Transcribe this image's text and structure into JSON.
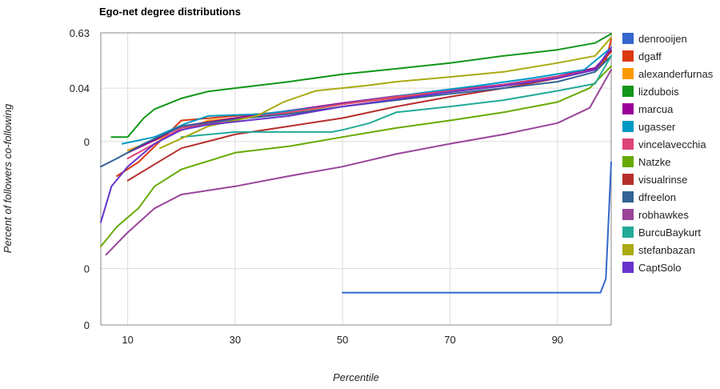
{
  "chart_data": {
    "type": "line",
    "title": "Ego-net degree distributions",
    "xlabel": "Percentile",
    "ylabel": "Percent of followers co-following",
    "xlim": [
      5,
      100
    ],
    "yscale": "log",
    "ylim": [
      3e-07,
      0.63
    ],
    "x_ticks": [
      {
        "label": "10",
        "value": 10
      },
      {
        "label": "30",
        "value": 30
      },
      {
        "label": "50",
        "value": 50
      },
      {
        "label": "70",
        "value": 70
      },
      {
        "label": "90",
        "value": 90
      }
    ],
    "y_ticks": [
      {
        "label": "0",
        "value": 3e-07
      },
      {
        "label": "0",
        "value": 5e-06
      },
      {
        "label": "0",
        "value": 0.0028
      },
      {
        "label": "0.04",
        "value": 0.04
      },
      {
        "label": "0.63",
        "value": 0.63
      }
    ],
    "grid": true,
    "legend_position": "right",
    "series": [
      {
        "name": "denrooijen",
        "color": "#3366cc",
        "x": [
          50,
          98,
          99,
          100
        ],
        "y": [
          1.5e-06,
          1.5e-06,
          3e-06,
          0.001
        ]
      },
      {
        "name": "dgaff",
        "color": "#dc3912",
        "x": [
          8,
          12,
          20,
          30,
          40,
          50,
          60,
          70,
          80,
          90,
          97,
          99,
          100
        ],
        "y": [
          0.0005,
          0.001,
          0.008,
          0.01,
          0.0125,
          0.018,
          0.025,
          0.033,
          0.045,
          0.07,
          0.1,
          0.16,
          0.45
        ]
      },
      {
        "name": "alexanderfurnas",
        "color": "#ff9900",
        "x": [
          10,
          18,
          25,
          35,
          41,
          50,
          60,
          70,
          80,
          90,
          97,
          100
        ],
        "y": [
          0.0018,
          0.004,
          0.008,
          0.01,
          0.012,
          0.018,
          0.026,
          0.035,
          0.047,
          0.07,
          0.1,
          0.25
        ]
      },
      {
        "name": "lizdubois",
        "color": "#109618",
        "x": [
          7,
          10,
          13,
          15,
          20,
          25,
          30,
          40,
          50,
          60,
          70,
          80,
          90,
          97,
          100
        ],
        "y": [
          0.0035,
          0.0035,
          0.009,
          0.014,
          0.024,
          0.034,
          0.04,
          0.055,
          0.08,
          0.105,
          0.14,
          0.2,
          0.27,
          0.38,
          0.6
        ]
      },
      {
        "name": "marcua",
        "color": "#990099",
        "x": [
          10,
          15,
          20,
          30,
          40,
          50,
          60,
          70,
          80,
          90,
          97,
          100
        ],
        "y": [
          0.0016,
          0.003,
          0.006,
          0.009,
          0.013,
          0.019,
          0.027,
          0.036,
          0.048,
          0.072,
          0.11,
          0.26
        ]
      },
      {
        "name": "ugasser",
        "color": "#0099c6",
        "x": [
          9,
          15,
          21,
          25,
          35,
          45,
          55,
          65,
          75,
          85,
          95,
          100
        ],
        "y": [
          0.0025,
          0.0035,
          0.007,
          0.01,
          0.011,
          0.015,
          0.022,
          0.032,
          0.045,
          0.065,
          0.1,
          0.3
        ]
      },
      {
        "name": "vincelavecchia",
        "color": "#dd4477",
        "x": [
          10,
          15,
          20,
          30,
          40,
          50,
          60,
          70,
          80,
          90,
          97,
          100
        ],
        "y": [
          0.0012,
          0.0025,
          0.0055,
          0.0085,
          0.012,
          0.018,
          0.026,
          0.035,
          0.047,
          0.071,
          0.1,
          0.3
        ]
      },
      {
        "name": "Natzke",
        "color": "#66aa00",
        "x": [
          5,
          8,
          12,
          15,
          20,
          30,
          40,
          50,
          60,
          70,
          80,
          90,
          96,
          100
        ],
        "y": [
          1.5e-05,
          4e-05,
          0.0001,
          0.0003,
          0.0007,
          0.0016,
          0.0022,
          0.0035,
          0.0055,
          0.008,
          0.012,
          0.02,
          0.04,
          0.12
        ]
      },
      {
        "name": "visualrinse",
        "color": "#b82e2e",
        "x": [
          10,
          15,
          20,
          30,
          40,
          50,
          60,
          70,
          80,
          90,
          97,
          100
        ],
        "y": [
          0.0004,
          0.0009,
          0.002,
          0.004,
          0.006,
          0.009,
          0.016,
          0.026,
          0.04,
          0.065,
          0.1,
          0.25
        ]
      },
      {
        "name": "dfreelon",
        "color": "#316395",
        "x": [
          5,
          8,
          13,
          20,
          30,
          40,
          50,
          60,
          70,
          80,
          90,
          97,
          100
        ],
        "y": [
          0.0008,
          0.0012,
          0.0025,
          0.006,
          0.0085,
          0.011,
          0.016,
          0.022,
          0.03,
          0.04,
          0.055,
          0.09,
          0.2
        ]
      },
      {
        "name": "robhawkes",
        "color": "#994499",
        "x": [
          6,
          10,
          15,
          20,
          30,
          40,
          50,
          60,
          70,
          80,
          90,
          96,
          100
        ],
        "y": [
          1e-05,
          3e-05,
          0.0001,
          0.0002,
          0.0003,
          0.0005,
          0.0008,
          0.0015,
          0.0025,
          0.004,
          0.007,
          0.015,
          0.1
        ]
      },
      {
        "name": "BurcuBaykurt",
        "color": "#22aa99",
        "x": [
          20,
          30,
          40,
          48,
          50,
          55,
          60,
          70,
          80,
          90,
          97,
          100
        ],
        "y": [
          0.0035,
          0.0045,
          0.0045,
          0.0045,
          0.005,
          0.007,
          0.012,
          0.016,
          0.022,
          0.035,
          0.05,
          0.2
        ]
      },
      {
        "name": "stefanbazan",
        "color": "#aaaa11",
        "x": [
          16,
          25,
          34,
          39,
          45,
          54,
          60,
          70,
          80,
          90,
          97,
          100
        ],
        "y": [
          0.002,
          0.006,
          0.01,
          0.02,
          0.035,
          0.045,
          0.055,
          0.07,
          0.09,
          0.14,
          0.2,
          0.5
        ]
      },
      {
        "name": "CaptSolo",
        "color": "#6633cc",
        "x": [
          5,
          7,
          10,
          15,
          20,
          25,
          30,
          40,
          50,
          60,
          70,
          80,
          90,
          97,
          100
        ],
        "y": [
          5e-05,
          0.0003,
          0.0008,
          0.0025,
          0.005,
          0.0065,
          0.0075,
          0.01,
          0.016,
          0.023,
          0.033,
          0.045,
          0.066,
          0.1,
          0.3
        ]
      }
    ]
  }
}
